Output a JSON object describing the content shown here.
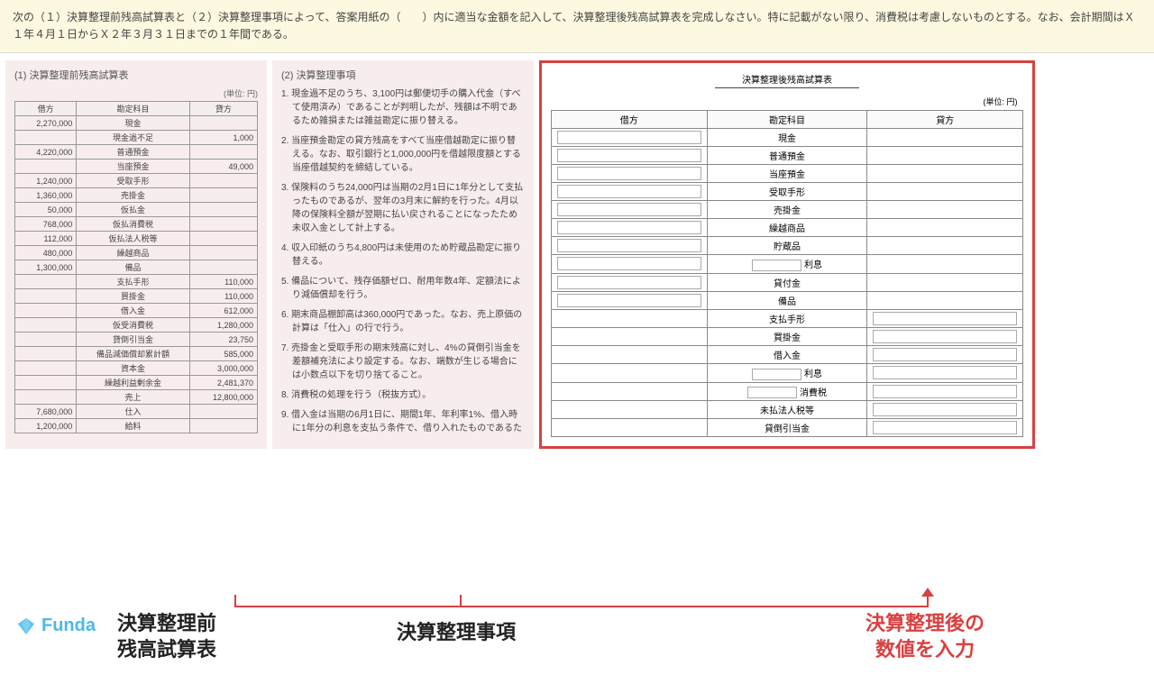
{
  "header": {
    "line1": "次の（１）決算整理前残高試算表と（２）決算整理事項によって、答案用紙の（　　）内に適当な金額を記入して、決算整理後残高試算表を完成しなさい。特に記載がない限り、消費税は考慮しないものとする。なお、会計期間はＸ１年４月１日からＸ２年３月３１日までの１年間である。"
  },
  "panel1": {
    "title": "(1) 決算整理前残高試算表",
    "unit": "(単位: 円)",
    "cols": {
      "debit": "借方",
      "account": "勘定科目",
      "credit": "貸方"
    },
    "rows": [
      {
        "d": "2,270,000",
        "a": "現金",
        "c": ""
      },
      {
        "d": "",
        "a": "現金過不足",
        "c": "1,000"
      },
      {
        "d": "4,220,000",
        "a": "普通預金",
        "c": ""
      },
      {
        "d": "",
        "a": "当座預金",
        "c": "49,000"
      },
      {
        "d": "1,240,000",
        "a": "受取手形",
        "c": ""
      },
      {
        "d": "1,360,000",
        "a": "売掛金",
        "c": ""
      },
      {
        "d": "50,000",
        "a": "仮払金",
        "c": ""
      },
      {
        "d": "768,000",
        "a": "仮払消費税",
        "c": ""
      },
      {
        "d": "112,000",
        "a": "仮払法人税等",
        "c": ""
      },
      {
        "d": "480,000",
        "a": "繰越商品",
        "c": ""
      },
      {
        "d": "1,300,000",
        "a": "備品",
        "c": ""
      },
      {
        "d": "",
        "a": "支払手形",
        "c": "110,000"
      },
      {
        "d": "",
        "a": "買掛金",
        "c": "110,000"
      },
      {
        "d": "",
        "a": "借入金",
        "c": "612,000"
      },
      {
        "d": "",
        "a": "仮受消費税",
        "c": "1,280,000"
      },
      {
        "d": "",
        "a": "貸倒引当金",
        "c": "23,750"
      },
      {
        "d": "",
        "a": "備品減価償却累計額",
        "c": "585,000"
      },
      {
        "d": "",
        "a": "資本金",
        "c": "3,000,000"
      },
      {
        "d": "",
        "a": "繰越利益剰余金",
        "c": "2,481,370"
      },
      {
        "d": "",
        "a": "売上",
        "c": "12,800,000"
      },
      {
        "d": "7,680,000",
        "a": "仕入",
        "c": ""
      },
      {
        "d": "1,200,000",
        "a": "給料",
        "c": ""
      }
    ]
  },
  "panel2": {
    "title": "(2) 決算整理事項",
    "items": [
      "1. 現金過不足のうち、3,100円は郵便切手の購入代金（すべて使用済み）であることが判明したが、残額は不明であるため雑損または雑益勘定に振り替える。",
      "2. 当座預金勘定の貸方残高をすべて当座借越勘定に振り替える。なお、取引銀行と1,000,000円を借越限度額とする当座借越契約を締結している。",
      "3. 保険料のうち24,000円は当期の2月1日に1年分として支払ったものであるが、翌年の3月末に解約を行った。4月以降の保険料全額が翌期に払い戻されることになったため未収入金として計上する。",
      "4. 収入印紙のうち4,800円は未使用のため貯蔵品勘定に振り替える。",
      "5. 備品について、残存価額ゼロ、耐用年数4年、定額法により減価償却を行う。",
      "6. 期末商品棚卸高は360,000円であった。なお、売上原価の計算は「仕入」の行で行う。",
      "7. 売掛金と受取手形の期末残高に対し、4%の貸倒引当金を差額補充法により設定する。なお、端数が生じる場合には小数点以下を切り捨てること。",
      "8. 消費税の処理を行う（税抜方式）。",
      "9. 借入金は当期の6月1日に、期間1年、年利率1%、借入時に1年分の利息を支払う条件で、借り入れたものであるた"
    ]
  },
  "panel3": {
    "title": "決算整理後残高試算表",
    "unit": "(単位: 円)",
    "cols": {
      "debit": "借方",
      "account": "勘定科目",
      "credit": "貸方"
    },
    "accounts_debit": [
      "現金",
      "普通預金",
      "当座預金",
      "受取手形",
      "売掛金",
      "繰越商品",
      "貯蔵品",
      "利息",
      "貸付金",
      "備品"
    ],
    "accounts_credit": [
      "支払手形",
      "買掛金",
      "借入金",
      "利息",
      "消費税",
      "未払法人税等",
      "貸倒引当金"
    ]
  },
  "labels": {
    "l1a": "決算整理前",
    "l1b": "残高試算表",
    "l2": "決算整理事項",
    "l3a": "決算整理後の",
    "l3b": "数値を入力"
  },
  "logo": {
    "text": "Funda"
  },
  "colors": {
    "red": "#d94040",
    "pink": "#f8eded",
    "yellow": "#fcf9e0",
    "blue": "#4db8e8"
  }
}
